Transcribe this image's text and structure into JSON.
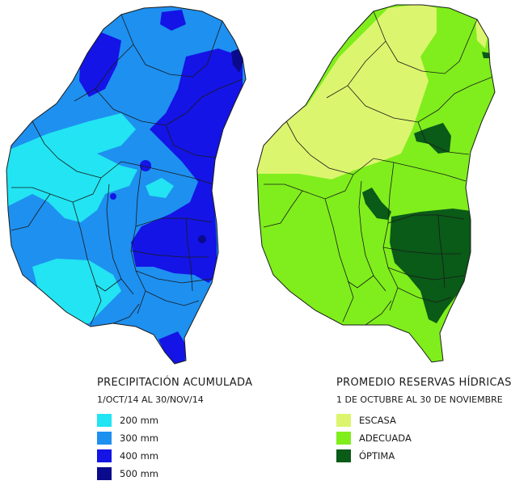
{
  "left_map": {
    "title": "PRECIPITACIÓN ACUMULADA",
    "period": "1/OCT/14 AL 30/NOV/14",
    "legend": [
      {
        "label": "200 mm",
        "color": "#22e4f2"
      },
      {
        "label": "300 mm",
        "color": "#1e90f0"
      },
      {
        "label": "400 mm",
        "color": "#1414e6"
      },
      {
        "label": "500 mm",
        "color": "#0a0a8c"
      }
    ]
  },
  "right_map": {
    "title": "PROMEDIO RESERVAS HÍDRICAS",
    "period": "1 DE OCTUBRE AL 30 DE NOVIEMBRE",
    "legend": [
      {
        "label": "ESCASA",
        "color": "#dcf56e"
      },
      {
        "label": "ADECUADA",
        "color": "#7fee1c"
      },
      {
        "label": "ÓPTIMA",
        "color": "#0a5a18"
      }
    ]
  }
}
